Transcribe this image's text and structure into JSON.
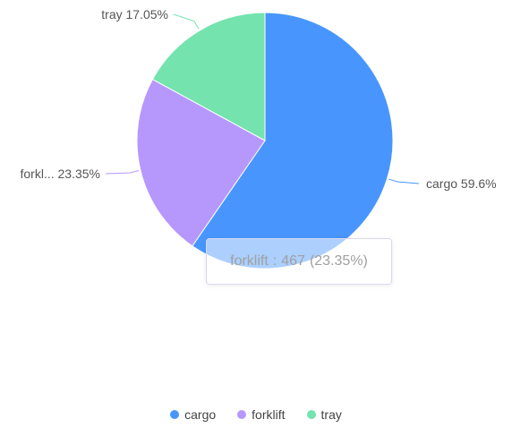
{
  "chart_data": {
    "type": "pie",
    "title": "",
    "series": [
      {
        "name": "cargo",
        "value": 1192,
        "percent": "59.6%",
        "label": "cargo 59.6%",
        "color": "#4896fd"
      },
      {
        "name": "forklift",
        "value": 467,
        "percent": "23.35%",
        "label": "forkl... 23.35%",
        "color": "#b698fd"
      },
      {
        "name": "tray",
        "value": 341,
        "percent": "17.05%",
        "label": "tray 17.05%",
        "color": "#74e3ae"
      }
    ],
    "legend_position": "bottom"
  },
  "tooltip": {
    "name": "forklift",
    "separator": ":",
    "value": "467",
    "percent": "(23.35%)"
  },
  "legend": {
    "items": [
      {
        "label": "cargo",
        "color": "#4896fd"
      },
      {
        "label": "forklift",
        "color": "#b698fd"
      },
      {
        "label": "tray",
        "color": "#74e3ae"
      }
    ]
  }
}
